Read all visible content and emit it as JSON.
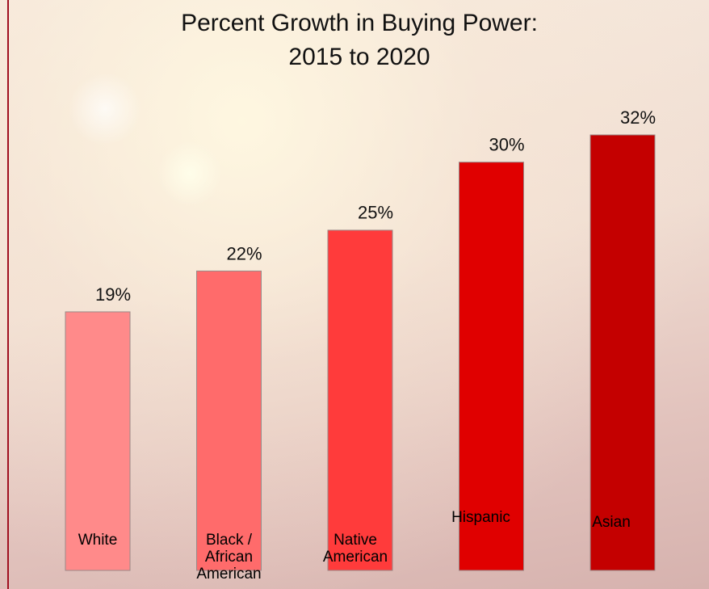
{
  "chart_data": {
    "type": "bar",
    "title": [
      "Percent Growth in Buying Power:",
      "2015 to 2020"
    ],
    "categories": [
      "White",
      "Black / African American",
      "Native American",
      "Hispanic",
      "Asian"
    ],
    "values": [
      19,
      22,
      25,
      30,
      32
    ],
    "value_labels": [
      "19%",
      "22%",
      "25%",
      "30%",
      "32%"
    ],
    "colors": [
      "#ff8a8a",
      "#ff6b6b",
      "#ff3b3b",
      "#e00000",
      "#c40000"
    ]
  }
}
